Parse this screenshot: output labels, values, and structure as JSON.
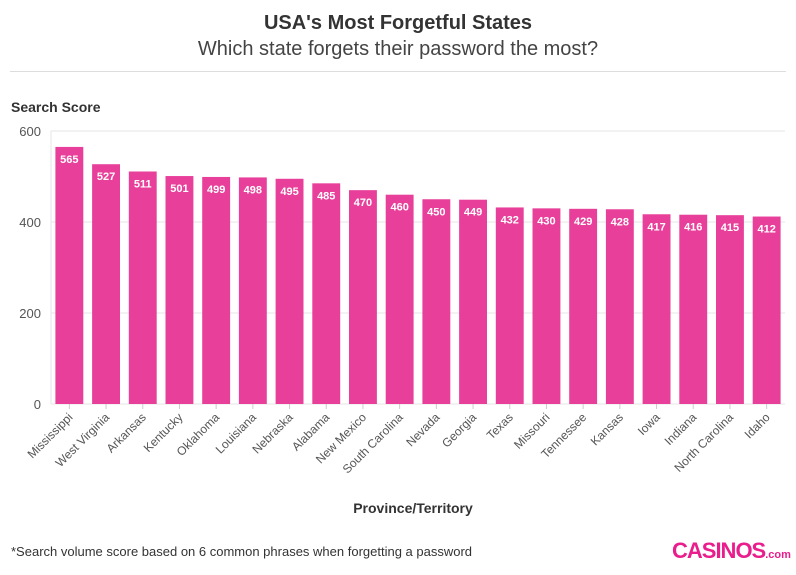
{
  "title": "USA's Most Forgetful States",
  "subtitle": "Which state forgets their password the most?",
  "footnote": "*Search volume score based on 6 common phrases when forgetting a password",
  "logo": {
    "text": "CASINOS",
    "suffix": ".com"
  },
  "colors": {
    "bar": "#e8409a",
    "logo": "#ea1d8c"
  },
  "chart_data": {
    "type": "bar",
    "title": "USA's Most Forgetful States",
    "subtitle": "Which state forgets their password the most?",
    "xlabel": "Province/Territory",
    "ylabel": "Search Score",
    "ylim": [
      0,
      600
    ],
    "yticks": [
      0,
      200,
      400,
      600
    ],
    "grid": true,
    "categories": [
      "Mississippi",
      "West Virginia",
      "Arkansas",
      "Kentucky",
      "Oklahoma",
      "Louisiana",
      "Nebraska",
      "Alabama",
      "New Mexico",
      "South Carolina",
      "Nevada",
      "Georgia",
      "Texas",
      "Missouri",
      "Tennessee",
      "Kansas",
      "Iowa",
      "Indiana",
      "North Carolina",
      "Idaho"
    ],
    "values": [
      565,
      527,
      511,
      501,
      499,
      498,
      495,
      485,
      470,
      460,
      450,
      449,
      432,
      430,
      429,
      428,
      417,
      416,
      415,
      412
    ]
  }
}
